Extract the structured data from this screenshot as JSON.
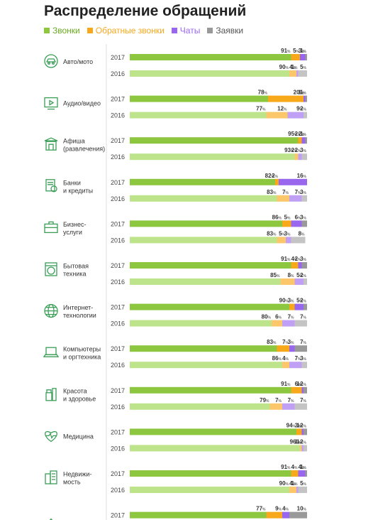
{
  "title": "Распределение обращений",
  "legend": [
    {
      "label": "Звонки",
      "color": "#8dc63f"
    },
    {
      "label": "Обратные звонки",
      "color": "#f7a81b"
    },
    {
      "label": "Чаты",
      "color": "#9966ee"
    },
    {
      "label": "Заявки",
      "color": "#999999"
    }
  ],
  "colors": {
    "calls": "#8dc63f",
    "calls_light": "#bde48a",
    "callbacks": "#f7a81b",
    "callbacks_light": "#fcc76a",
    "chats": "#9966ee",
    "chats_light": "#c0a0f5",
    "requests": "#999999",
    "requests_light": "#c4c4c4",
    "icon": "#3a9e57"
  },
  "chart_data": {
    "type": "bar",
    "orientation": "horizontal",
    "stacked": true,
    "percent_suffix": "%",
    "series": [
      {
        "name": "Звонки"
      },
      {
        "name": "Обратные звонки"
      },
      {
        "name": "Чаты"
      },
      {
        "name": "Заявки"
      }
    ],
    "categories": [
      {
        "label": [
          "Авто/мото"
        ],
        "icon": "car-icon",
        "rows": [
          {
            "year": "2017",
            "values": [
              91,
              5,
              3,
              1
            ]
          },
          {
            "year": "2016",
            "values": [
              90,
              4,
              1,
              5
            ]
          }
        ]
      },
      {
        "label": [
          "Аудио/видео"
        ],
        "icon": "audio-video-icon",
        "rows": [
          {
            "year": "2017",
            "values": [
              78,
              20,
              1,
              1
            ]
          },
          {
            "year": "2016",
            "values": [
              77,
              12,
              9,
              2
            ]
          }
        ]
      },
      {
        "label": [
          "Афиша",
          "(развлечения)"
        ],
        "icon": "theater-icon",
        "rows": [
          {
            "year": "2017",
            "values": [
              95,
              2,
              2,
              1
            ]
          },
          {
            "year": "2016",
            "values": [
              93,
              2,
              2,
              3
            ]
          }
        ]
      },
      {
        "label": [
          "Банки",
          "и кредиты"
        ],
        "icon": "bank-icon",
        "rows": [
          {
            "year": "2017",
            "values": [
              82,
              2,
              16,
              0
            ]
          },
          {
            "year": "2016",
            "values": [
              83,
              7,
              7,
              3
            ]
          }
        ]
      },
      {
        "label": [
          "Бизнес-",
          "услуги"
        ],
        "icon": "briefcase-icon",
        "rows": [
          {
            "year": "2017",
            "values": [
              86,
              5,
              6,
              3
            ]
          },
          {
            "year": "2016",
            "values": [
              83,
              5,
              3,
              8
            ]
          }
        ]
      },
      {
        "label": [
          "Бытовая",
          "техника"
        ],
        "icon": "washing-machine-icon",
        "rows": [
          {
            "year": "2017",
            "values": [
              91,
              4,
              2,
              3
            ]
          },
          {
            "year": "2016",
            "values": [
              85,
              8,
              5,
              2
            ]
          }
        ]
      },
      {
        "label": [
          "Интернет-",
          "технологии"
        ],
        "icon": "globe-icon",
        "rows": [
          {
            "year": "2017",
            "values": [
              90,
              3,
              5,
              2
            ]
          },
          {
            "year": "2016",
            "values": [
              80,
              6,
              7,
              7
            ]
          }
        ]
      },
      {
        "label": [
          "Компьютеры",
          "и оргтехника"
        ],
        "icon": "laptop-icon",
        "rows": [
          {
            "year": "2017",
            "values": [
              83,
              7,
              3,
              7
            ]
          },
          {
            "year": "2016",
            "values": [
              86,
              4,
              7,
              3
            ]
          }
        ]
      },
      {
        "label": [
          "Красота",
          "и здоровье"
        ],
        "icon": "cosmetics-icon",
        "rows": [
          {
            "year": "2017",
            "values": [
              91,
              6,
              1,
              2
            ]
          },
          {
            "year": "2016",
            "values": [
              79,
              7,
              7,
              7
            ]
          }
        ]
      },
      {
        "label": [
          "Медицина"
        ],
        "icon": "heart-pulse-icon",
        "rows": [
          {
            "year": "2017",
            "values": [
              94,
              3,
              1,
              2
            ]
          },
          {
            "year": "2016",
            "values": [
              96,
              1,
              1,
              2
            ]
          }
        ]
      },
      {
        "label": [
          "Недвижи-",
          "мость"
        ],
        "icon": "building-icon",
        "rows": [
          {
            "year": "2017",
            "values": [
              91,
              4,
              4,
              1
            ]
          },
          {
            "year": "2016",
            "values": [
              90,
              4,
              1,
              5
            ]
          }
        ]
      },
      {
        "label": [
          ""
        ],
        "icon": "partial-icon",
        "rows": [
          {
            "year": "2017",
            "values": [
              77,
              9,
              4,
              10
            ]
          }
        ]
      }
    ]
  }
}
